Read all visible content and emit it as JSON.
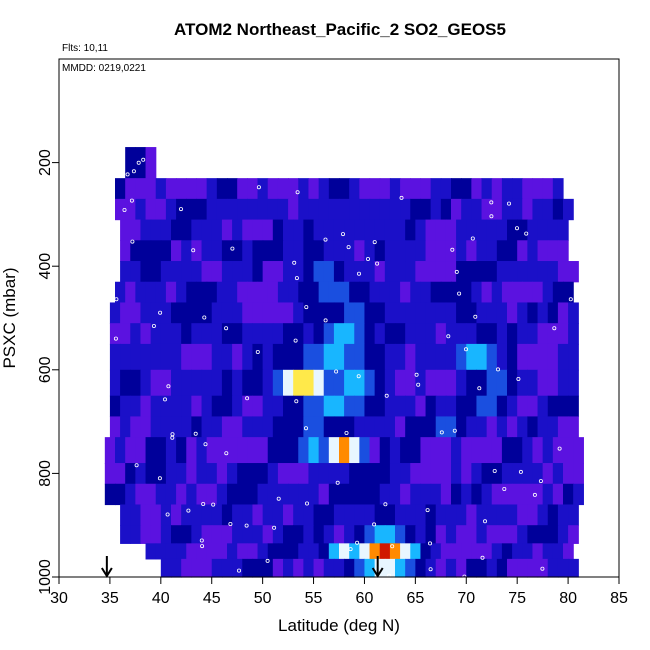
{
  "chart_data": {
    "type": "heatmap",
    "title": "ATOM2 Northeast_Pacific_2 SO2_GEOS5",
    "notes": {
      "flights": "Flts: 10,11",
      "dates": "MMDD: 0219,0221"
    },
    "xlabel": "Latitude (deg N)",
    "ylabel": "PSXC (mbar)",
    "xlim": [
      30,
      85
    ],
    "ylim": [
      1000,
      0
    ],
    "x_ticks": [
      "30",
      "35",
      "40",
      "45",
      "50",
      "55",
      "60",
      "65",
      "70",
      "75",
      "80",
      "85"
    ],
    "y_ticks": [
      "200",
      "400",
      "600",
      "800",
      "1000"
    ],
    "arrows_lat": [
      34.7,
      61.3
    ],
    "colormap": [
      "#7a1fd6",
      "#5b12e0",
      "#1b10c8",
      "#00009a",
      "#1a4fe0",
      "#18b6ff",
      "#e8f6ff",
      "#ffe94a",
      "#ff8a00",
      "#d01800"
    ],
    "layers": [
      {
        "p_top": 170,
        "p_bot": 230,
        "lat_min": 36.5,
        "lat_max": 39.5,
        "hot": []
      },
      {
        "p_top": 230,
        "p_bot": 270,
        "lat_min": 35.5,
        "lat_max": 79.0,
        "hot": [
          {
            "lat": 37,
            "w": 2,
            "v": 1
          },
          {
            "lat": 70,
            "w": 3,
            "v": 1
          }
        ]
      },
      {
        "p_top": 270,
        "p_bot": 310,
        "lat_min": 35.5,
        "lat_max": 80.0,
        "hot": [
          {
            "lat": 43,
            "w": 3,
            "v": 3
          },
          {
            "lat": 57,
            "w": 3,
            "v": 2
          },
          {
            "lat": 64,
            "w": 4,
            "v": 2
          }
        ]
      },
      {
        "p_top": 310,
        "p_bot": 350,
        "lat_min": 36.0,
        "lat_max": 80.0,
        "hot": [
          {
            "lat": 42,
            "w": 4,
            "v": 3
          },
          {
            "lat": 58,
            "w": 5,
            "v": 2
          },
          {
            "lat": 72,
            "w": 3,
            "v": 2
          }
        ]
      },
      {
        "p_top": 350,
        "p_bot": 390,
        "lat_min": 36.0,
        "lat_max": 80.0,
        "hot": [
          {
            "lat": 47,
            "w": 3,
            "v": 3
          },
          {
            "lat": 55,
            "w": 4,
            "v": 3
          },
          {
            "lat": 63,
            "w": 3,
            "v": 2
          }
        ]
      },
      {
        "p_top": 390,
        "p_bot": 430,
        "lat_min": 36.0,
        "lat_max": 80.5,
        "hot": [
          {
            "lat": 39,
            "w": 3,
            "v": 3
          },
          {
            "lat": 56,
            "w": 4,
            "v": 4
          },
          {
            "lat": 76,
            "w": 3,
            "v": 2
          }
        ]
      },
      {
        "p_top": 430,
        "p_bot": 470,
        "lat_min": 35.5,
        "lat_max": 80.5,
        "hot": [
          {
            "lat": 44,
            "w": 3,
            "v": 3
          },
          {
            "lat": 57,
            "w": 6,
            "v": 4
          },
          {
            "lat": 68,
            "w": 4,
            "v": 3
          }
        ]
      },
      {
        "p_top": 470,
        "p_bot": 510,
        "lat_min": 35.0,
        "lat_max": 81.0,
        "hot": [
          {
            "lat": 42,
            "w": 4,
            "v": 3
          },
          {
            "lat": 59,
            "w": 5,
            "v": 4
          },
          {
            "lat": 70,
            "w": 3,
            "v": 3
          }
        ]
      },
      {
        "p_top": 510,
        "p_bot": 550,
        "lat_min": 35.0,
        "lat_max": 81.0,
        "hot": [
          {
            "lat": 47,
            "w": 3,
            "v": 3
          },
          {
            "lat": 58,
            "w": 4,
            "v": 5
          },
          {
            "lat": 72,
            "w": 4,
            "v": 3
          }
        ]
      },
      {
        "p_top": 550,
        "p_bot": 600,
        "lat_min": 35.0,
        "lat_max": 81.0,
        "hot": [
          {
            "lat": 57,
            "w": 7,
            "v": 5
          },
          {
            "lat": 71,
            "w": 3,
            "v": 6
          }
        ]
      },
      {
        "p_top": 600,
        "p_bot": 650,
        "lat_min": 35.0,
        "lat_max": 81.0,
        "hot": [
          {
            "lat": 54,
            "w": 4,
            "v": 8
          },
          {
            "lat": 59,
            "w": 4,
            "v": 6
          },
          {
            "lat": 73,
            "w": 3,
            "v": 5
          }
        ]
      },
      {
        "p_top": 650,
        "p_bot": 690,
        "lat_min": 35.0,
        "lat_max": 81.0,
        "hot": [
          {
            "lat": 57,
            "w": 7,
            "v": 5
          },
          {
            "lat": 72,
            "w": 3,
            "v": 5
          }
        ]
      },
      {
        "p_top": 690,
        "p_bot": 730,
        "lat_min": 35.0,
        "lat_max": 81.0,
        "hot": [
          {
            "lat": 55,
            "w": 7,
            "v": 4
          },
          {
            "lat": 68,
            "w": 4,
            "v": 4
          }
        ]
      },
      {
        "p_top": 730,
        "p_bot": 780,
        "lat_min": 34.5,
        "lat_max": 81.0,
        "hot": [
          {
            "lat": 58,
            "w": 3,
            "v": 8
          },
          {
            "lat": 55,
            "w": 3,
            "v": 5
          }
        ]
      },
      {
        "p_top": 780,
        "p_bot": 820,
        "lat_min": 34.5,
        "lat_max": 81.0,
        "hot": [
          {
            "lat": 60,
            "w": 5,
            "v": 3
          }
        ]
      },
      {
        "p_top": 820,
        "p_bot": 860,
        "lat_min": 34.5,
        "lat_max": 81.0,
        "hot": [
          {
            "lat": 60,
            "w": 4,
            "v": 3
          }
        ]
      },
      {
        "p_top": 860,
        "p_bot": 900,
        "lat_min": 36.0,
        "lat_max": 80.5,
        "hot": [
          {
            "lat": 62,
            "w": 3,
            "v": 3
          }
        ]
      },
      {
        "p_top": 900,
        "p_bot": 935,
        "lat_min": 36.0,
        "lat_max": 80.5,
        "hot": [
          {
            "lat": 62,
            "w": 4,
            "v": 6
          }
        ]
      },
      {
        "p_top": 935,
        "p_bot": 965,
        "lat_min": 38.5,
        "lat_max": 80.5,
        "hot": [
          {
            "lat": 62,
            "w": 5,
            "v": 9
          },
          {
            "lat": 58,
            "w": 3,
            "v": 6
          }
        ]
      },
      {
        "p_top": 965,
        "p_bot": 1000,
        "lat_min": 40.0,
        "lat_max": 80.5,
        "hot": [
          {
            "lat": 62,
            "w": 5,
            "v": 7
          }
        ]
      }
    ]
  }
}
